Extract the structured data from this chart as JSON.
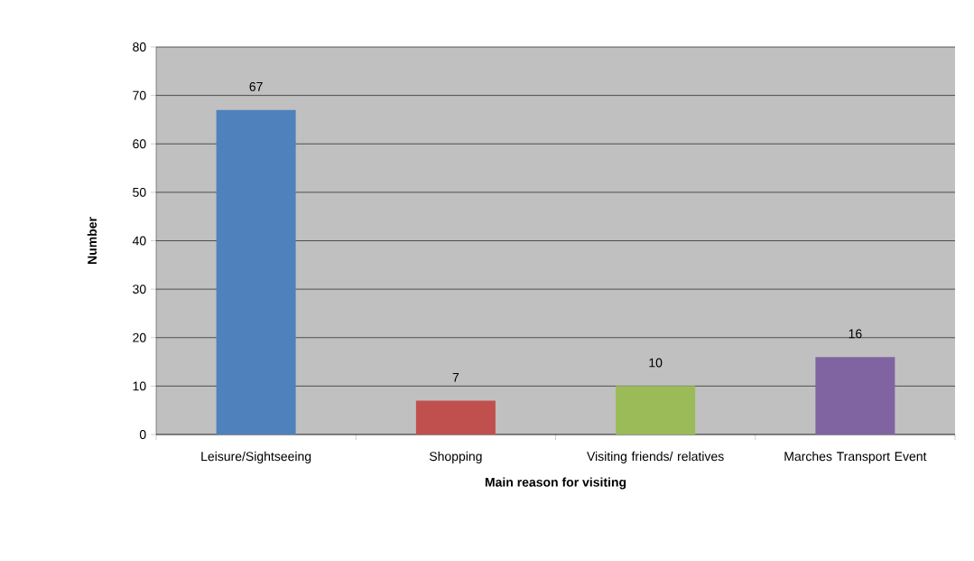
{
  "chart_data": {
    "type": "bar",
    "xlabel": "Main reason for visiting",
    "ylabel": "Number",
    "categories": [
      "Leisure/Sightseeing",
      "Shopping",
      "Visiting friends/ relatives",
      "Marches Transport Event"
    ],
    "values": [
      67,
      7,
      10,
      16
    ],
    "colors": [
      "#4f81bd",
      "#c0504d",
      "#9bbb59",
      "#8064a2"
    ],
    "ylim": [
      0,
      80
    ],
    "yticks": [
      0,
      10,
      20,
      30,
      40,
      50,
      60,
      70,
      80
    ],
    "grid": "y",
    "data_labels": true
  }
}
